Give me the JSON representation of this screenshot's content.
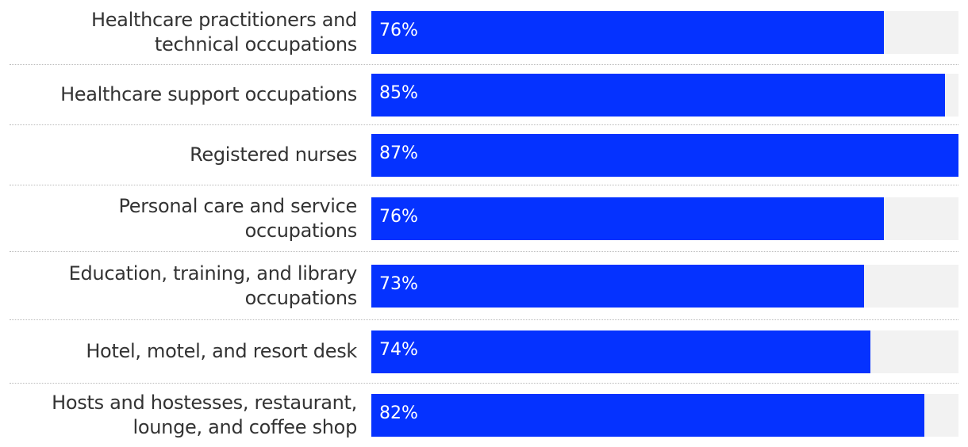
{
  "chart_data": {
    "type": "bar",
    "orientation": "horizontal",
    "categories": [
      "Healthcare practitioners and technical occupations",
      "Healthcare support occupations",
      "Registered nurses",
      "Personal care and service occupations",
      "Education, training, and library occupations",
      "Hotel, motel, and resort desk",
      "Hosts and hostesses, restaurant, lounge, and coffee shop"
    ],
    "values": [
      76,
      85,
      87,
      76,
      73,
      74,
      82
    ],
    "value_labels": [
      "76%",
      "85%",
      "87%",
      "76%",
      "73%",
      "74%",
      "82%"
    ],
    "color": "#0532ff",
    "xlim": [
      0,
      87
    ]
  }
}
